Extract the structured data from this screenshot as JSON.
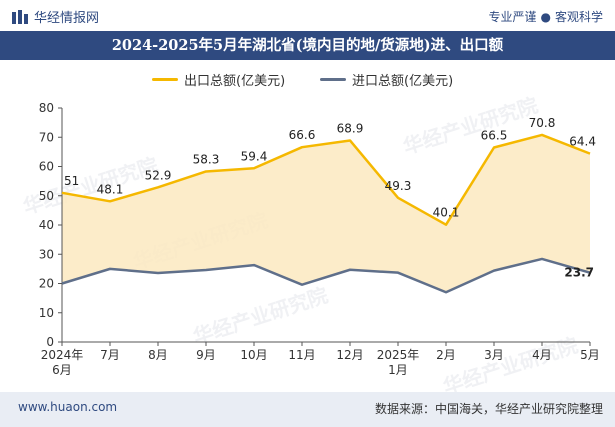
{
  "header": {
    "brand": "华经情报网",
    "tags": [
      "专业严谨",
      "客观科学"
    ]
  },
  "title": "2024-2025年5月年湖北省(境内目的地/货源地)进、出口额",
  "watermark": "华经产业研究院",
  "footer": {
    "site": "www.huaon.com",
    "source": "数据来源：中国海关，华经产业研究院整理"
  },
  "colors": {
    "export_line": "#f5b800",
    "import_line": "#5f6f8a",
    "area_fill": "#fbe9c0",
    "brand": "#2f4a80"
  },
  "chart_data": {
    "type": "line",
    "title": "2024-2025年5月年湖北省(境内目的地/货源地)进、出口额",
    "categories": [
      "2024年\n6月",
      "7月",
      "8月",
      "9月",
      "10月",
      "11月",
      "12月",
      "2025年\n1月",
      "2月",
      "3月",
      "4月",
      "5月"
    ],
    "series": [
      {
        "name": "出口总额(亿美元)",
        "values": [
          51,
          48.1,
          52.9,
          58.3,
          59.4,
          66.6,
          68.9,
          49.3,
          40.1,
          66.5,
          70.8,
          64.4
        ],
        "labels": [
          "51",
          "48.1",
          "52.9",
          "58.3",
          "59.4",
          "66.6",
          "68.9",
          "49.3",
          "40.1",
          "66.5",
          "70.8",
          "64.4"
        ],
        "color": "#f5b800"
      },
      {
        "name": "进口总额(亿美元)",
        "values": [
          20,
          25,
          23.6,
          24.6,
          26.3,
          19.6,
          24.7,
          23.7,
          17,
          24.4,
          28.4,
          23.7
        ],
        "labels": [
          "",
          "",
          "",
          "",
          "",
          "",
          "",
          "",
          "",
          "",
          "",
          "23.7"
        ],
        "color": "#5f6f8a"
      }
    ],
    "yticks": [
      "0",
      "10",
      "20",
      "30",
      "40",
      "50",
      "60",
      "70",
      "80"
    ],
    "ylim": [
      0,
      80
    ],
    "xlabel": "",
    "ylabel": "",
    "legend": "top-center",
    "grid": false
  }
}
